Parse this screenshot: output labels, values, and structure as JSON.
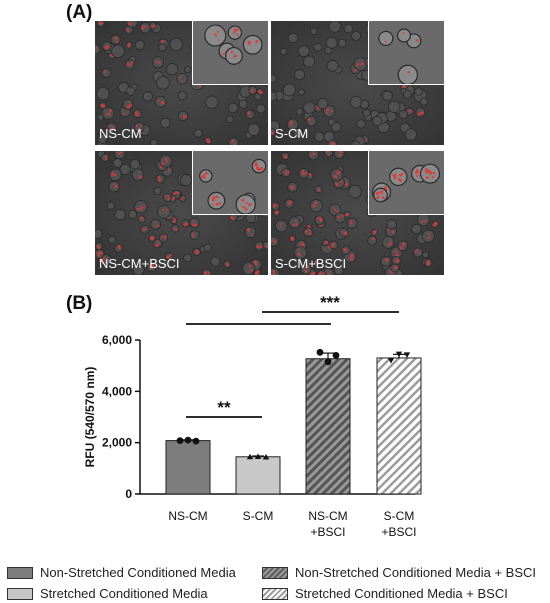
{
  "panel_a": {
    "label": "(A)",
    "images": [
      {
        "label": "NS-CM"
      },
      {
        "label": "S-CM"
      },
      {
        "label": "NS-CM+BSCI"
      },
      {
        "label": "S-CM+BSCI"
      }
    ]
  },
  "panel_b": {
    "label": "(B)"
  },
  "chart_data": {
    "type": "bar",
    "categories": [
      "NS-CM",
      "S-CM",
      "NS-CM\n+BSCI",
      "S-CM\n+BSCI"
    ],
    "values": [
      2080,
      1450,
      5270,
      5300
    ],
    "errors": [
      30,
      30,
      220,
      140
    ],
    "points": [
      [
        2080,
        2100,
        2060
      ],
      [
        1450,
        1460,
        1440
      ],
      [
        5520,
        5150,
        5400
      ],
      [
        5200,
        5450,
        5420
      ]
    ],
    "ylabel": "RFU (540/570 nm)",
    "xlabel": "",
    "ylim": [
      0,
      6000
    ],
    "yticks": [
      0,
      2000,
      4000,
      6000
    ],
    "ytick_labels": [
      "0",
      "2,000",
      "4,000",
      "6,000"
    ],
    "grid": false,
    "significance": [
      {
        "label": "**",
        "from": 0,
        "to": 1
      },
      {
        "label": "***",
        "from": "0-1",
        "to": "2-3"
      }
    ],
    "colors": [
      "#7d7d7d",
      "#c8c8c8",
      "#6e6e6e",
      "#d9d9d9"
    ],
    "patterns": [
      "solid",
      "solid",
      "hatched",
      "hatched"
    ]
  },
  "legend": {
    "items": [
      {
        "label": "Non-Stretched Conditioned Media",
        "style": "sw-dark"
      },
      {
        "label": "Stretched Conditioned Media",
        "style": "sw-light"
      },
      {
        "label": "Non-Stretched Conditioned Media + BSCI",
        "style": "sw-dark-h"
      },
      {
        "label": "Stretched Conditioned Media + BSCI",
        "style": "sw-light-h"
      }
    ]
  }
}
